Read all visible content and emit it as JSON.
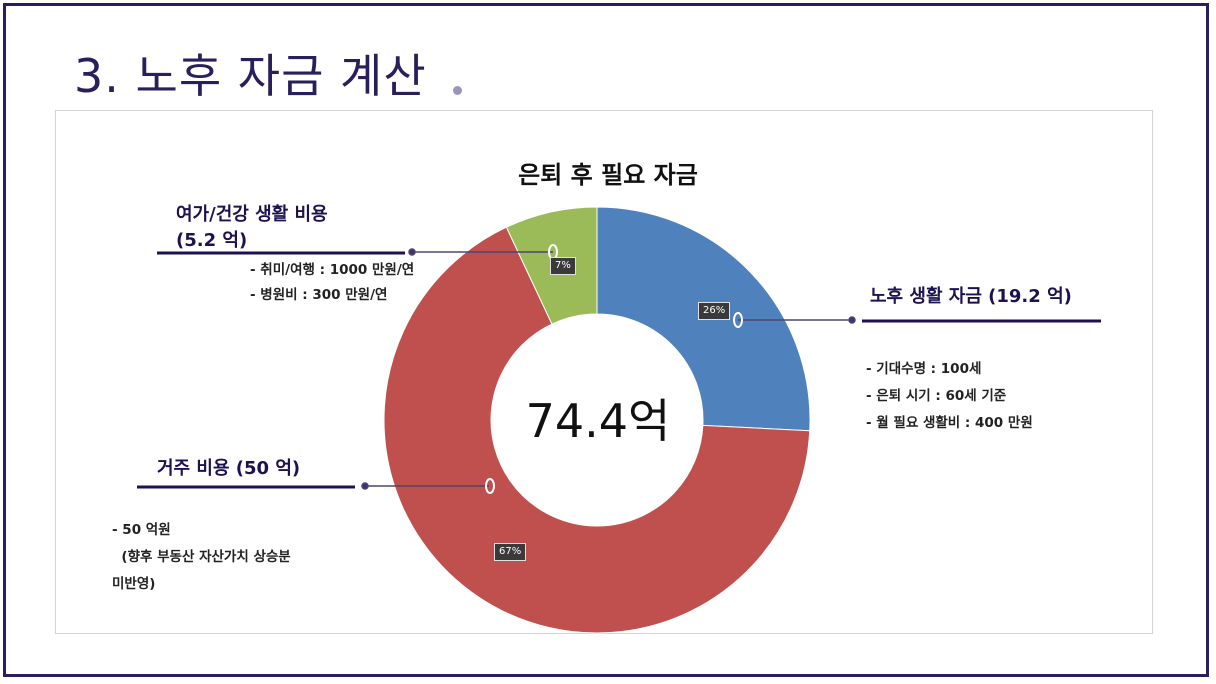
{
  "slide": {
    "title": "3. 노후 자금 계산"
  },
  "chart_data": {
    "type": "pie",
    "title": "은퇴 후 필요 자금",
    "center_label": "74.4억",
    "slices": [
      {
        "label": "노후 생활 자금",
        "value": 19.2,
        "percent_label": "26%",
        "color": "#4f81bd"
      },
      {
        "label": "거주 비용",
        "value": 50,
        "percent_label": "67%",
        "color": "#c0504d"
      },
      {
        "label": "여가/건강 생활 비용",
        "value": 5.2,
        "percent_label": "7%",
        "color": "#9bbb59"
      }
    ]
  },
  "callouts": {
    "living": {
      "heading": "노후 생활 자금 (19.2 억)",
      "details": [
        "- 기대수명 : 100세",
        "- 은퇴 시기 : 60세 기준",
        "- 월 필요 생활비 : 400 만원"
      ]
    },
    "housing": {
      "heading": "거주 비용 (50 억)",
      "details": [
        "- 50 억원",
        "  (향후 부동산 자산가치 상승분",
        "미반영)"
      ]
    },
    "leisure": {
      "heading_line1": "여가/건강 생활 비용",
      "heading_line2": "(5.2 억)",
      "details": [
        "- 취미/여행 : 1000 만원/연",
        "- 병원비 : 300 만원/연"
      ]
    }
  }
}
